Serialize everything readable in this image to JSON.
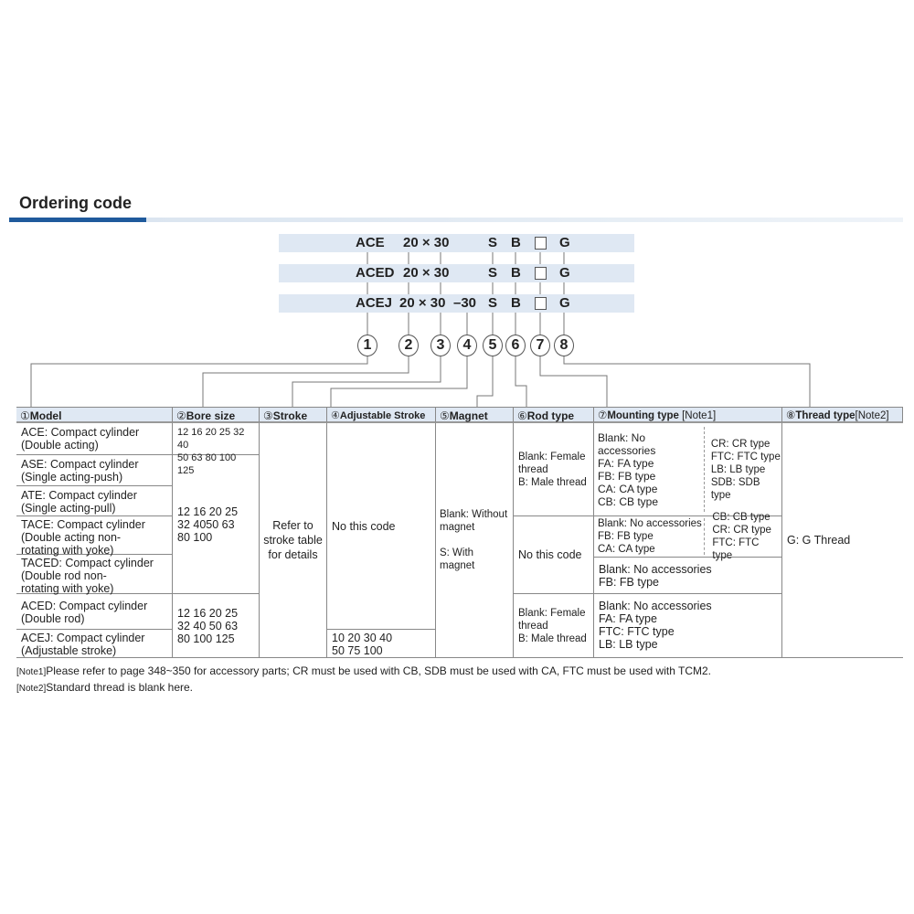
{
  "title": "Ordering code",
  "codes": [
    {
      "model": "ACE",
      "size": "20 × 30",
      "adj": "",
      "magnet": "S",
      "rod": "B",
      "mount": "□",
      "thread": "G"
    },
    {
      "model": "ACED",
      "size": "20 × 30",
      "adj": "",
      "magnet": "S",
      "rod": "B",
      "mount": "□",
      "thread": "G"
    },
    {
      "model": "ACEJ",
      "size": "20 × 30",
      "adj": "–30",
      "magnet": "S",
      "rod": "B",
      "mount": "□",
      "thread": "G"
    }
  ],
  "circles": [
    "1",
    "2",
    "3",
    "4",
    "5",
    "6",
    "7",
    "8"
  ],
  "headers": [
    {
      "num": "①",
      "label": "Model"
    },
    {
      "num": "②",
      "label": "Bore size"
    },
    {
      "num": "③",
      "label": "Stroke"
    },
    {
      "num": "④",
      "label": "Adjustable Stroke"
    },
    {
      "num": "⑤",
      "label": "Magnet"
    },
    {
      "num": "⑥",
      "label": "Rod type"
    },
    {
      "num": "⑦",
      "label": "Mounting type",
      "note": " [Note1]"
    },
    {
      "num": "⑧",
      "label": "Thread type",
      "note": "[Note2]"
    }
  ],
  "models": [
    "ACE: Compact cylinder\n        (Double acting)",
    "ASE: Compact cylinder\n        (Single acting-push)",
    "ATE: Compact cylinder\n       (Single acting-pull)",
    "TACE: Compact cylinder\n         (Double acting non-\n         rotating with yoke)",
    "TACED: Compact cylinder\n           (Double rod non-\n           rotating with yoke)",
    "ACED: Compact cylinder\n         (Double rod)",
    "ACEJ: Compact cylinder\n         (Adjustable stroke)"
  ],
  "bore_sizes": [
    "12 16 20 25 32 40\n50 63 80 100 125",
    "12 16 20 25\n 32 4050 63\n80 100",
    "12 16 20 25\n32 40 50 63\n80 100 125"
  ],
  "stroke": "Refer to\nstroke table\nfor details",
  "adjustable_stroke": [
    "No this code",
    "10 20 30 40\n50 75 100"
  ],
  "magnet": "Blank: Without\nmagnet\n\nS: With magnet",
  "rod_type": [
    "Blank: Female\nthread\nB: Male thread",
    "No this code",
    "Blank: Female\nthread\nB: Male thread"
  ],
  "mounting": {
    "r1_left": "Blank: No accessories\nFA: FA type\nFB: FB type\nCA: CA type\nCB: CB type",
    "r1_right": "CR: CR type\nFTC: FTC type\nLB: LB type\nSDB: SDB type",
    "r2_left": "Blank: No accessories\nFB: FB type\nCA: CA type",
    "r2_right": "CB: CB type\nCR: CR type\nFTC: FTC type",
    "r3": "Blank: No accessories\nFB: FB type",
    "r4": "Blank: No accessories\nFA: FA type\nFTC: FTC type\nLB: LB type"
  },
  "thread_type": "G: G Thread",
  "notes": [
    {
      "tag": "[Note1]",
      "text": "Please refer to page 348~350 for accessory parts; CR must be used with CB, SDB must be used with CA, FTC must be used with TCM2."
    },
    {
      "tag": "[Note2]",
      "text": "Standard thread is blank here."
    }
  ],
  "colors": {
    "accent": "#1f5a9c",
    "header_bg": "#dfe8f3"
  }
}
